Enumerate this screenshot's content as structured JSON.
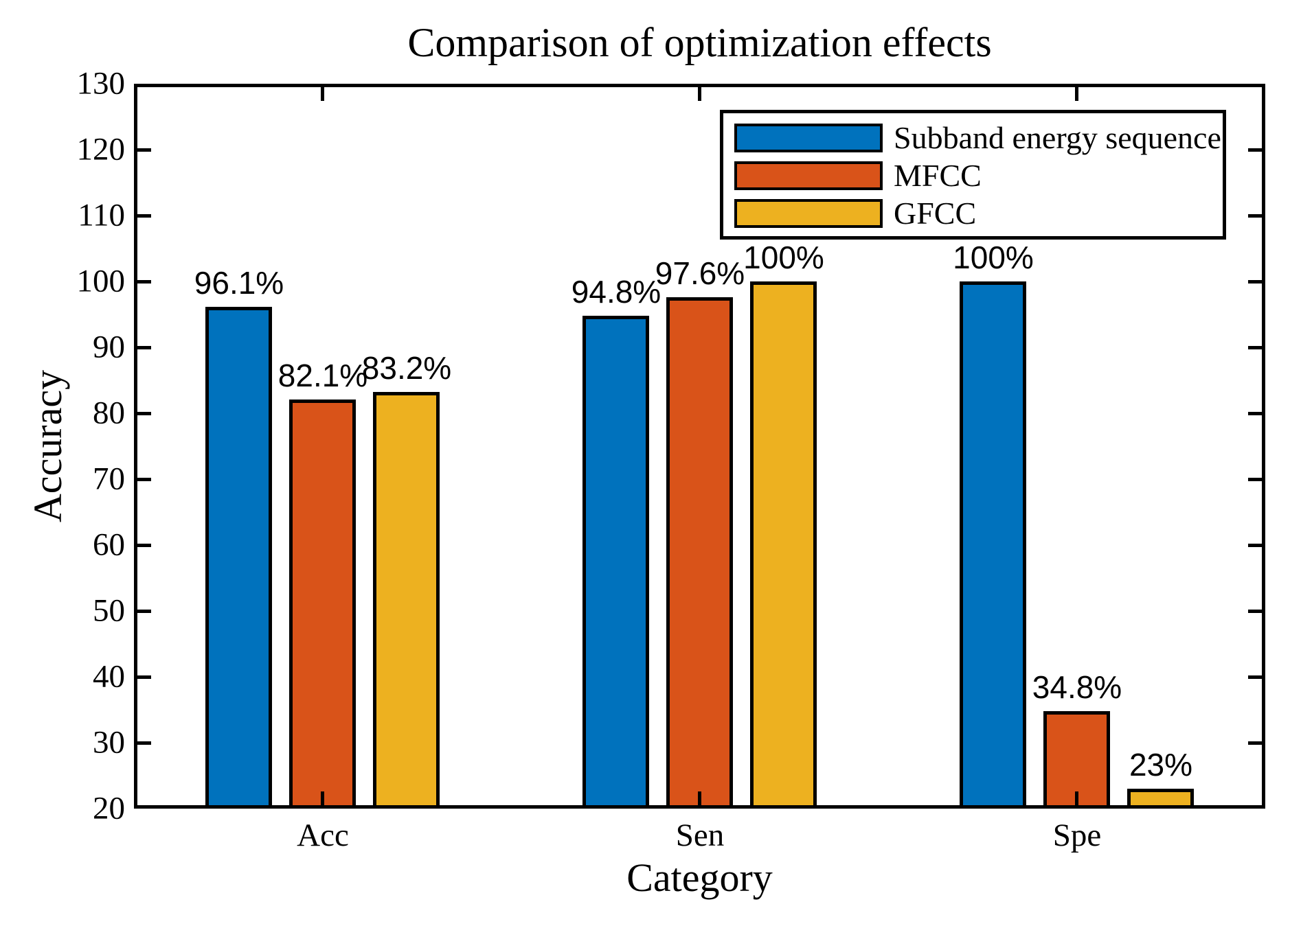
{
  "chart_data": {
    "type": "bar",
    "title": "Comparison of optimization effects",
    "xlabel": "Category",
    "ylabel": "Accuracy",
    "categories": [
      "Acc",
      "Sen",
      "Spe"
    ],
    "series": [
      {
        "name": "Subband energy sequence",
        "color": "#0072BD",
        "values": [
          96.1,
          94.8,
          100
        ],
        "labels": [
          "96.1%",
          "94.8%",
          "100%"
        ]
      },
      {
        "name": "MFCC",
        "color": "#D95319",
        "values": [
          82.1,
          97.6,
          34.8
        ],
        "labels": [
          "82.1%",
          "97.6%",
          "34.8%"
        ]
      },
      {
        "name": "GFCC",
        "color": "#EDB120",
        "values": [
          83.2,
          100,
          23
        ],
        "labels": [
          "83.2%",
          "100%",
          "23%"
        ]
      }
    ],
    "ylim": [
      20,
      130
    ],
    "y_ticks": [
      130,
      120,
      110,
      100,
      90,
      80,
      70,
      60,
      50,
      40,
      30,
      20
    ],
    "grid": false,
    "legend_position": "northeast",
    "bar_edge_color": "#000000",
    "axis_color": "#000000",
    "background_color": "#FFFFFF"
  }
}
